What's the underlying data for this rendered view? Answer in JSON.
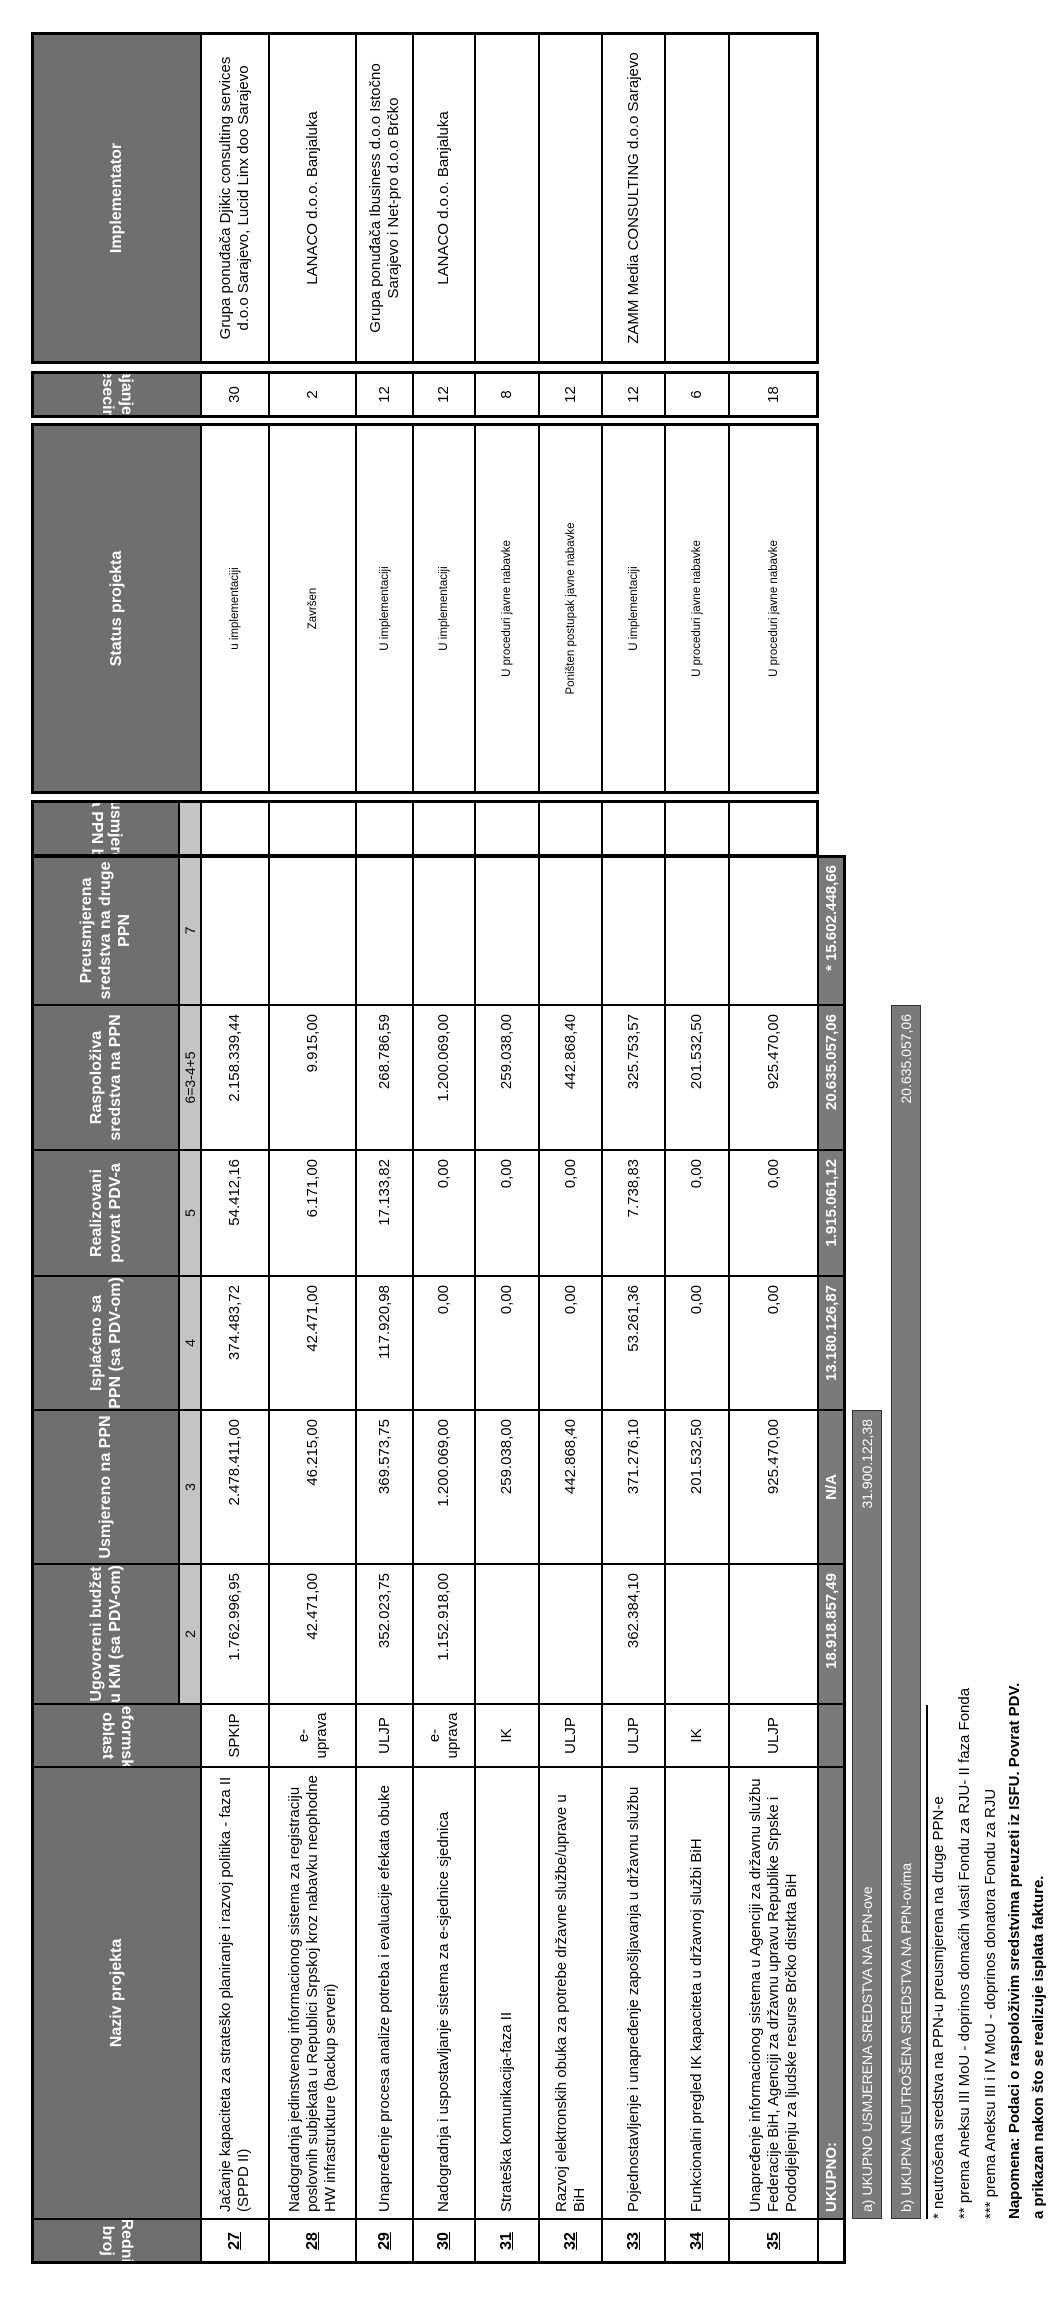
{
  "headers": {
    "redni": "Redni broj",
    "naziv": "Naziv projekta",
    "reforma": "Reformska oblast",
    "ugovoreni": "Ugovoreni budžet u KM (sa PDV-om)",
    "usmjereno": "Usmjereno na PPN",
    "isplaceno": "Isplaćeno sa PPN (sa PDV-om)",
    "realizovani": "Realizovani povrat PDV-a",
    "raspoloziva": "Raspoloživa sredstva na PPN",
    "preusmjerena": "Preusmjerena sredstva na druge PPN",
    "preusm_br": "preusmjereno na PPN br.",
    "status": "Status projekta",
    "trajanje": "Trajanje (u mjesecima)",
    "implementator": "Implementator"
  },
  "column_numbers": {
    "ugovoreni": "2",
    "usmjereno": "3",
    "isplaceno": "4",
    "realizovani": "5",
    "raspoloziva": "6=3-4+5",
    "preusmjerena": "7",
    "preusm_br": ""
  },
  "rows": [
    {
      "redni": "27",
      "naziv": "Jačanje kapaciteta za strateško planiranje i razvoj politika - faza II (SPPD II)",
      "reforma": "SPKIP",
      "ugovoreni": "1.762.996,95",
      "usmjereno": "2.478.411,00",
      "isplaceno": "374.483,72",
      "realizovani": "54.412,16",
      "raspoloziva": "2.158.339,44",
      "preusmjerena": "",
      "preusm_br": "",
      "status": "u implementaciji",
      "trajanje": "30",
      "implementator": "Grupa ponuđača Djikic consulting services d.o.o Sarajevo, Lucid Linx doo Sarajevo"
    },
    {
      "redni": "28",
      "naziv": "Nadogradnja jedinstvenog informacionog sistema za registraciju poslovnih subjekata u Republici Srpskoj kroz nabavku neophodne HW infrastrukture (backup serveri)",
      "reforma": "e-uprava",
      "ugovoreni": "42.471,00",
      "usmjereno": "46.215,00",
      "isplaceno": "42.471,00",
      "realizovani": "6.171,00",
      "raspoloziva": "9.915,00",
      "preusmjerena": "",
      "preusm_br": "",
      "status": "Završen",
      "trajanje": "2",
      "implementator": "LANACO d.o.o. Banjaluka"
    },
    {
      "redni": "29",
      "naziv": "Unapređenje  procesa analize potreba i evaluacije efekata obuke",
      "reforma": "ULJP",
      "ugovoreni": "352.023,75",
      "usmjereno": "369.573,75",
      "isplaceno": "117.920,98",
      "realizovani": "17.133,82",
      "raspoloziva": "268.786,59",
      "preusmjerena": "",
      "preusm_br": "",
      "status": "U implementaciji",
      "trajanje": "12",
      "implementator": "Grupa ponuđača Ibusiness d.o.o Istočno Sarajevo i Net-pro d.o.o Brčko"
    },
    {
      "redni": "30",
      "naziv": "Nadogradnja i uspostavljanje sistema za e-sjednice sjednica",
      "reforma": "e-uprava",
      "ugovoreni": "1.152.918,00",
      "usmjereno": "1.200.069,00",
      "isplaceno": "0,00",
      "realizovani": "0,00",
      "raspoloziva": "1.200.069,00",
      "preusmjerena": "",
      "preusm_br": "",
      "status": "U implementaciji",
      "trajanje": "12",
      "implementator": "LANACO d.o.o. Banjaluka"
    },
    {
      "redni": "31",
      "naziv": "Strateška komunikacija-faza II",
      "reforma": "IK",
      "ugovoreni": "",
      "usmjereno": "259.038,00",
      "isplaceno": "0,00",
      "realizovani": "0,00",
      "raspoloziva": "259.038,00",
      "preusmjerena": "",
      "preusm_br": "",
      "status": "U proceduri javne nabavke",
      "trajanje": "8",
      "implementator": ""
    },
    {
      "redni": "32",
      "naziv": "Razvoj elektronskih obuka za potrebe državne službe/uprave u BiH",
      "reforma": "ULJP",
      "ugovoreni": "",
      "usmjereno": "442.868,40",
      "isplaceno": "0,00",
      "realizovani": "0,00",
      "raspoloziva": "442.868,40",
      "preusmjerena": "",
      "preusm_br": "",
      "status": "Poništen postupak javne nabavke",
      "trajanje": "12",
      "implementator": ""
    },
    {
      "redni": "33",
      "naziv": "Pojednostavljenje i unapređenje zapošljavanja u državnu službu",
      "reforma": "ULJP",
      "ugovoreni": "362.384,10",
      "usmjereno": "371.276,10",
      "isplaceno": "53.261,36",
      "realizovani": "7.738,83",
      "raspoloziva": "325.753,57",
      "preusmjerena": "",
      "preusm_br": "",
      "status": "U implementaciji",
      "trajanje": "12",
      "implementator": "ZAMM Media CONSULTING d.o.o Sarajevo"
    },
    {
      "redni": "34",
      "naziv": "Funkcionalni pregled IK kapaciteta u državnoj službi BiH",
      "reforma": "IK",
      "ugovoreni": "",
      "usmjereno": "201.532,50",
      "isplaceno": "0,00",
      "realizovani": "0,00",
      "raspoloziva": "201.532,50",
      "preusmjerena": "",
      "preusm_br": "",
      "status": "U proceduri javne nabavke",
      "trajanje": "6",
      "implementator": ""
    },
    {
      "redni": "35",
      "naziv": "Unapređenje informacionog sistema u Agenciji za državnu službu Federacije BiH, Agenciji za državnu upravu Republike Srpske i Pododjeljenju za ljudske resurse Brčko distrkta BiH",
      "reforma": "ULJP",
      "ugovoreni": "",
      "usmjereno": "925.470,00",
      "isplaceno": "0,00",
      "realizovani": "0,00",
      "raspoloziva": "925.470,00",
      "preusmjerena": "",
      "preusm_br": "",
      "status": "U proceduri javne nabavke",
      "trajanje": "18",
      "implementator": ""
    }
  ],
  "totals": {
    "naziv": "UKUPNO:",
    "ugovoreni": "18.918.857,49",
    "usmjereno": "N/A",
    "isplaceno": "13.180.126,87",
    "realizovani": "1.915.061,12",
    "raspoloziva": "20.635.057,06",
    "preusmjerena": "* 15.602.448,66"
  },
  "summary": {
    "a_label": "a) UKUPNO USMJERENA SREDSTVA NA PPN-ove",
    "a_value": "31.900.122,38",
    "b_label": "b) UKUPNA NEUTROŠENA SREDSTVA NA PPN-ovima",
    "b_value": "20.635.057,06"
  },
  "footnotes": [
    "* neutrošena sredstva na PPN-u preusmjerena na druge PPN-e",
    "** prema Aneksu III MoU - doprinos domaćih vlasti Fondu za RJU- II faza Fonda",
    "*** prema Aneksu III i IV MoU - doprinos donatora Fondu za RJU"
  ],
  "note": [
    "Napomena: Podaci o raspoloživim sredstvima preuzeti iz ISFU. Povrat PDV.",
    "a prikazan nakon što se realizuje isplata fakture."
  ],
  "colors": {
    "header": "#6f6f6f",
    "number_strip": "#c4c4c4",
    "totals": "#7a7a7a"
  }
}
